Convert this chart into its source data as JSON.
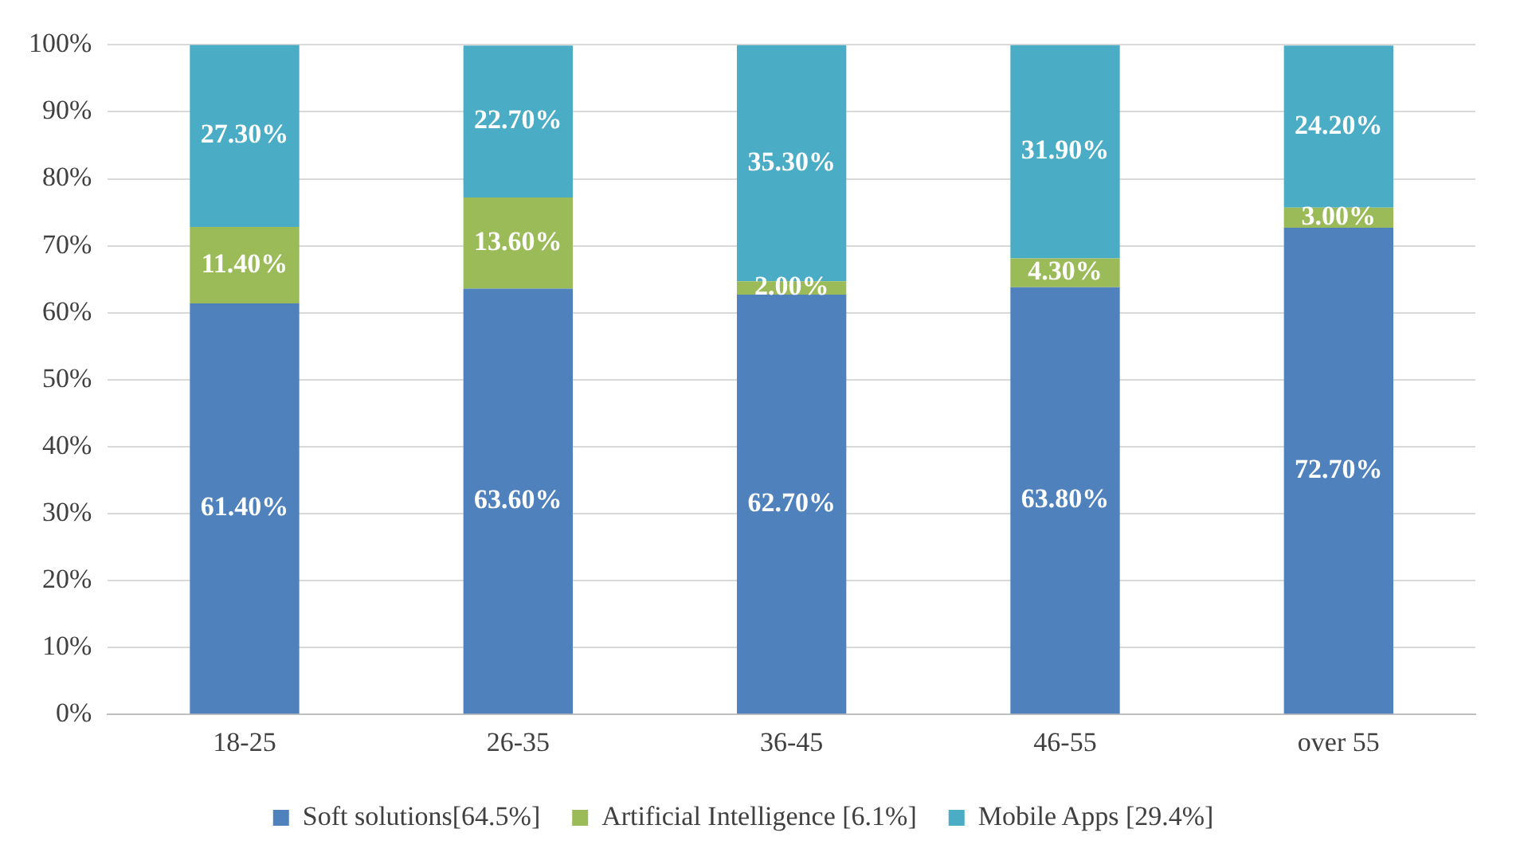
{
  "chart_data": {
    "type": "bar",
    "stacked": true,
    "categories": [
      "18-25",
      "26-35",
      "36-45",
      "46-55",
      "over 55"
    ],
    "series": [
      {
        "name": "Soft solutions[64.5%]",
        "color": "#4f81bd",
        "values": [
          61.4,
          63.6,
          62.7,
          63.8,
          72.7
        ],
        "value_labels": [
          "61.40%",
          "63.60%",
          "62.70%",
          "63.80%",
          "72.70%"
        ]
      },
      {
        "name": "Artificial Intelligence [6.1%]",
        "color": "#9bbb59",
        "values": [
          11.4,
          13.6,
          2.0,
          4.3,
          3.0
        ],
        "value_labels": [
          "11.40%",
          "13.60%",
          "2.00%",
          "4.30%",
          "3.00%"
        ]
      },
      {
        "name": "Mobile Apps [29.4%]",
        "color": "#4bacc6",
        "values": [
          27.3,
          22.7,
          35.3,
          31.9,
          24.2
        ],
        "value_labels": [
          "27.30%",
          "22.70%",
          "35.30%",
          "31.90%",
          "24.20%"
        ]
      }
    ],
    "ylim": [
      0,
      100
    ],
    "yticks": [
      {
        "value": 0,
        "label": "0%"
      },
      {
        "value": 10,
        "label": "10%"
      },
      {
        "value": 20,
        "label": "20%"
      },
      {
        "value": 30,
        "label": "30%"
      },
      {
        "value": 40,
        "label": "40%"
      },
      {
        "value": 50,
        "label": "50%"
      },
      {
        "value": 60,
        "label": "60%"
      },
      {
        "value": 70,
        "label": "70%"
      },
      {
        "value": 80,
        "label": "80%"
      },
      {
        "value": 90,
        "label": "90%"
      },
      {
        "value": 100,
        "label": "100%"
      }
    ],
    "grid": "y",
    "legend": "bottom"
  }
}
